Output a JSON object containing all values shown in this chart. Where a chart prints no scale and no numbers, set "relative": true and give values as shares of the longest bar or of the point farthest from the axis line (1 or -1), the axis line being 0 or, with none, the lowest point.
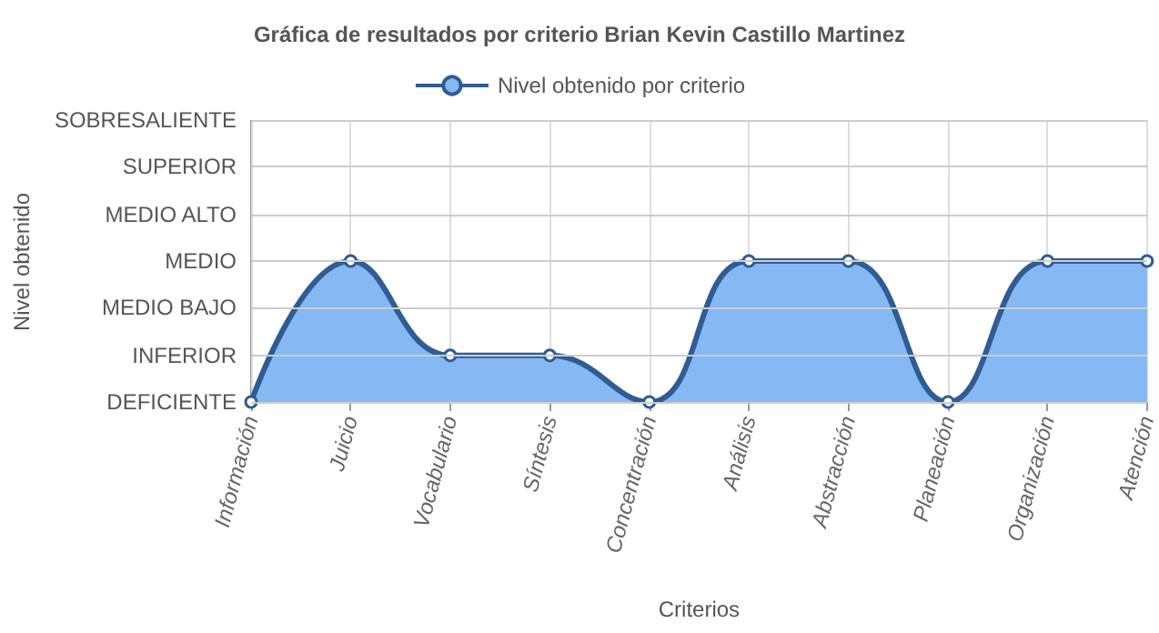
{
  "chart_data": {
    "type": "area",
    "title": "Gráfica de resultados por criterio Brian Kevin Castillo Martinez",
    "xlabel": "Criterios",
    "annotations": [
      "Nivel obtenido"
    ],
    "categories": [
      "Información",
      "Juicio",
      "Vocabulario",
      "Síntesis",
      "Concentración",
      "Análisis",
      "Abstracción",
      "Planeación",
      "Organización",
      "Atención"
    ],
    "relative": true,
    "series": [
      {
        "name": "Nivel obtenido por criterio",
        "color": "#86b8f4",
        "values": [
          0,
          1,
          0.33,
          0.33,
          0,
          1,
          1,
          0,
          1,
          1
        ]
      }
    ],
    "ref_lines": [
      {
        "axis": "y",
        "value": 0,
        "label": "DEFICIENTE",
        "color": "#cccccc"
      },
      {
        "axis": "y",
        "value": 0.33,
        "label": "INFERIOR",
        "color": "#cccccc"
      },
      {
        "axis": "y",
        "value": 0.67,
        "label": "MEDIO BAJO",
        "color": "#cccccc"
      },
      {
        "axis": "y",
        "value": 1,
        "label": "MEDIO",
        "color": "#cccccc"
      },
      {
        "axis": "y",
        "value": 1.33,
        "label": "MEDIO ALTO",
        "color": "#cccccc"
      },
      {
        "axis": "y",
        "value": 1.67,
        "label": "SUPERIOR",
        "color": "#cccccc"
      },
      {
        "axis": "y",
        "value": 2,
        "label": "SOBRESALIENTE",
        "color": "#cccccc"
      }
    ],
    "grid": "x",
    "legend": "top",
    "marker": "circle"
  }
}
